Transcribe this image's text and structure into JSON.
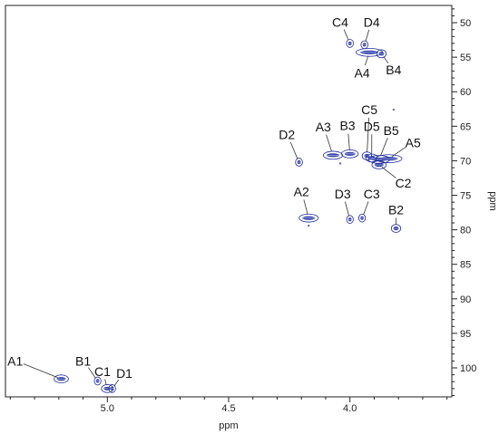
{
  "chart_data": {
    "type": "scatter",
    "title": "",
    "xlabel": "ppm",
    "ylabel": "ppm",
    "xlim": [
      5.42,
      3.58
    ],
    "ylim": [
      47.5,
      104.2
    ],
    "x_reversed": true,
    "y_reversed": true,
    "x_ticks": [
      5.0,
      4.5,
      4.0
    ],
    "x_tick_labels": [
      "5.0",
      "4.5",
      "4.0"
    ],
    "y_ticks": [
      50,
      55,
      60,
      65,
      70,
      75,
      80,
      85,
      90,
      95,
      100
    ],
    "y_tick_labels": [
      "50",
      "55",
      "60",
      "65",
      "70",
      "75",
      "80",
      "85",
      "90",
      "95",
      "100"
    ],
    "grid": false,
    "peak_color": "#1f2d9c",
    "peaks": [
      {
        "label": "A1",
        "x": 5.19,
        "y": 101.6,
        "width": 0.05,
        "label_x": 5.38,
        "label_y": 99.0
      },
      {
        "label": "B1",
        "x": 5.04,
        "y": 101.9,
        "width": 0.012,
        "label_x": 5.1,
        "label_y": 99.0
      },
      {
        "label": "C1",
        "x": 5.0,
        "y": 103.0,
        "width": 0.04,
        "label_x": 5.02,
        "label_y": 100.5
      },
      {
        "label": "D1",
        "x": 4.98,
        "y": 103.0,
        "width": 0.015,
        "label_x": 4.93,
        "label_y": 100.8
      },
      {
        "label": "D2",
        "x": 4.21,
        "y": 70.2,
        "width": 0.02,
        "label_x": 4.26,
        "label_y": 66.2
      },
      {
        "label": "A3",
        "x": 4.07,
        "y": 69.2,
        "width": 0.07,
        "label_x": 4.11,
        "label_y": 65.1
      },
      {
        "label": "B3",
        "x": 4.0,
        "y": 69.0,
        "width": 0.06,
        "label_x": 4.01,
        "label_y": 64.9
      },
      {
        "label": "C5",
        "x": 3.93,
        "y": 69.3,
        "width": 0.03,
        "label_x": 3.92,
        "label_y": 62.6
      },
      {
        "label": "D5",
        "x": 3.91,
        "y": 69.6,
        "width": 0.04,
        "label_x": 3.91,
        "label_y": 65.0
      },
      {
        "label": "B5",
        "x": 3.88,
        "y": 69.8,
        "width": 0.08,
        "label_x": 3.83,
        "label_y": 65.6
      },
      {
        "label": "A5",
        "x": 3.84,
        "y": 69.7,
        "width": 0.1,
        "label_x": 3.74,
        "label_y": 67.4
      },
      {
        "label": "C2",
        "x": 3.88,
        "y": 70.6,
        "width": 0.05,
        "label_x": 3.78,
        "label_y": 73.2
      },
      {
        "label": "A2",
        "x": 4.17,
        "y": 78.3,
        "width": 0.07,
        "label_x": 4.2,
        "label_y": 74.5
      },
      {
        "label": "D3",
        "x": 4.0,
        "y": 78.5,
        "width": 0.015,
        "label_x": 4.03,
        "label_y": 74.8
      },
      {
        "label": "C3",
        "x": 3.95,
        "y": 78.3,
        "width": 0.012,
        "label_x": 3.91,
        "label_y": 74.8
      },
      {
        "label": "B2",
        "x": 3.81,
        "y": 79.8,
        "width": 0.03,
        "label_x": 3.81,
        "label_y": 77.1
      },
      {
        "label": "C4",
        "x": 4.0,
        "y": 53.0,
        "width": 0.02,
        "label_x": 4.04,
        "label_y": 49.9
      },
      {
        "label": "D4",
        "x": 3.94,
        "y": 53.2,
        "width": 0.02,
        "label_x": 3.91,
        "label_y": 49.9
      },
      {
        "label": "A4",
        "x": 3.92,
        "y": 54.3,
        "width": 0.1,
        "label_x": 3.95,
        "label_y": 57.3
      },
      {
        "label": "B4",
        "x": 3.87,
        "y": 54.5,
        "width": 0.03,
        "label_x": 3.82,
        "label_y": 56.8
      }
    ],
    "minor_peaks": [
      {
        "x": 3.82,
        "y": 62.6
      },
      {
        "x": 4.04,
        "y": 70.4
      },
      {
        "x": 4.17,
        "y": 79.4
      }
    ]
  }
}
